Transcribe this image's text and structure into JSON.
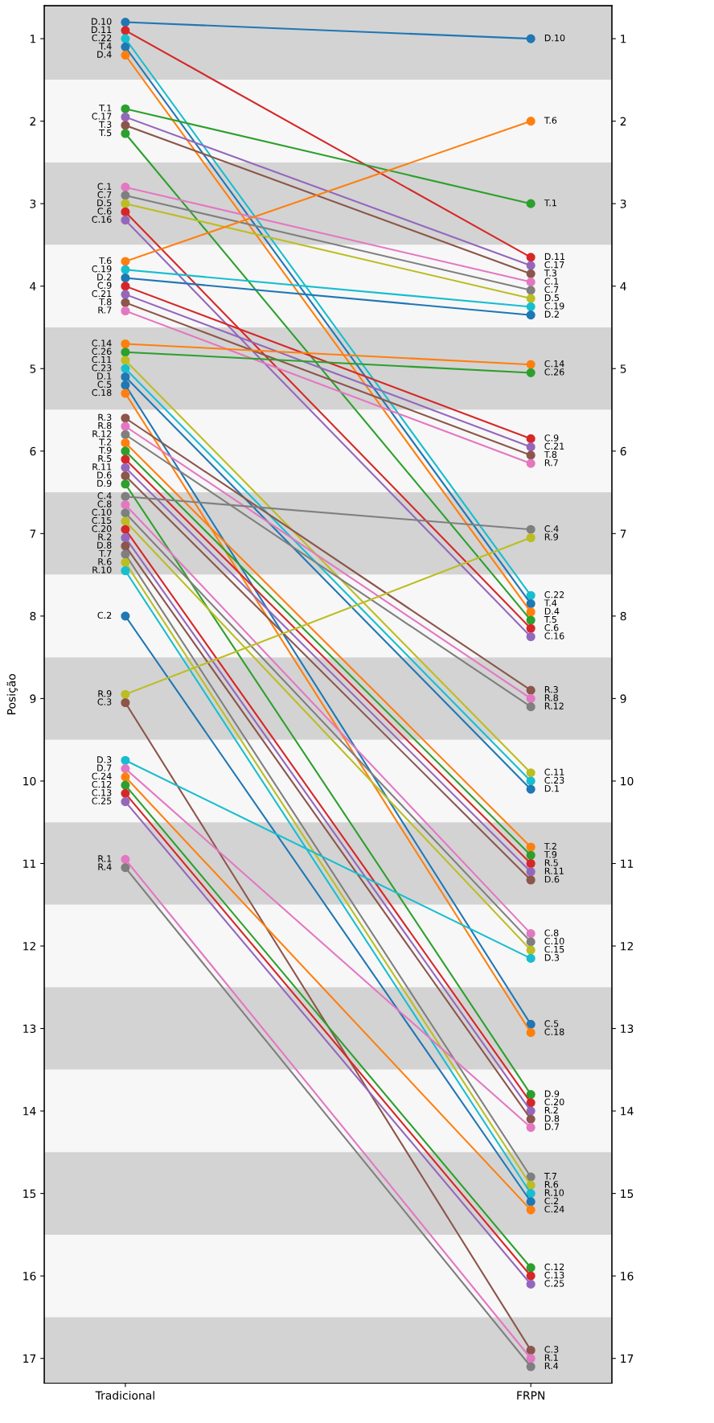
{
  "chart_data": {
    "type": "line",
    "ylabel": "Posição",
    "categories": [
      "Tradicional",
      "FRPN"
    ],
    "marker": "circle",
    "legend": false,
    "grid": false,
    "ylim": [
      17.3,
      0.6
    ],
    "yticks": [
      1,
      2,
      3,
      4,
      5,
      6,
      7,
      8,
      9,
      10,
      11,
      12,
      13,
      14,
      15,
      16,
      17
    ],
    "y2lim": [
      17.3,
      0.6
    ],
    "y2ticks": [
      1,
      2,
      3,
      4,
      5,
      6,
      7,
      8,
      9,
      10,
      11,
      12,
      13,
      14,
      15,
      16,
      17
    ],
    "bands": [
      {
        "axis": "y",
        "from": 0.5,
        "to": 1.5,
        "color": "#d3d3d3"
      },
      {
        "axis": "y",
        "from": 1.5,
        "to": 2.5,
        "color": "#f7f7f7"
      },
      {
        "axis": "y",
        "from": 2.5,
        "to": 3.5,
        "color": "#d3d3d3"
      },
      {
        "axis": "y",
        "from": 3.5,
        "to": 4.5,
        "color": "#f7f7f7"
      },
      {
        "axis": "y",
        "from": 4.5,
        "to": 5.5,
        "color": "#d3d3d3"
      },
      {
        "axis": "y",
        "from": 5.5,
        "to": 6.5,
        "color": "#f7f7f7"
      },
      {
        "axis": "y",
        "from": 6.5,
        "to": 7.5,
        "color": "#d3d3d3"
      },
      {
        "axis": "y",
        "from": 7.5,
        "to": 8.5,
        "color": "#f7f7f7"
      },
      {
        "axis": "y",
        "from": 8.5,
        "to": 9.5,
        "color": "#d3d3d3"
      },
      {
        "axis": "y",
        "from": 9.5,
        "to": 10.5,
        "color": "#f7f7f7"
      },
      {
        "axis": "y",
        "from": 10.5,
        "to": 11.5,
        "color": "#d3d3d3"
      },
      {
        "axis": "y",
        "from": 11.5,
        "to": 12.5,
        "color": "#f7f7f7"
      },
      {
        "axis": "y",
        "from": 12.5,
        "to": 13.5,
        "color": "#d3d3d3"
      },
      {
        "axis": "y",
        "from": 13.5,
        "to": 14.5,
        "color": "#f7f7f7"
      },
      {
        "axis": "y",
        "from": 14.5,
        "to": 15.5,
        "color": "#d3d3d3"
      },
      {
        "axis": "y",
        "from": 15.5,
        "to": 16.5,
        "color": "#f7f7f7"
      },
      {
        "axis": "y",
        "from": 16.5,
        "to": 17.5,
        "color": "#d3d3d3"
      }
    ],
    "series": [
      {
        "name": "D.10",
        "color": "#1f77b4",
        "values": [
          0.8,
          1.0
        ]
      },
      {
        "name": "D.11",
        "color": "#d62728",
        "values": [
          0.9,
          3.65
        ]
      },
      {
        "name": "C.22",
        "color": "#17becf",
        "values": [
          1.0,
          7.75
        ]
      },
      {
        "name": "T.4",
        "color": "#1f77b4",
        "values": [
          1.1,
          7.85
        ]
      },
      {
        "name": "D.4",
        "color": "#ff7f0e",
        "values": [
          1.2,
          7.95
        ]
      },
      {
        "name": "T.1",
        "color": "#2ca02c",
        "values": [
          1.85,
          3.0
        ]
      },
      {
        "name": "C.17",
        "color": "#9467bd",
        "values": [
          1.95,
          3.75
        ]
      },
      {
        "name": "T.3",
        "color": "#8c564b",
        "values": [
          2.05,
          3.85
        ]
      },
      {
        "name": "T.5",
        "color": "#2ca02c",
        "values": [
          2.15,
          8.05
        ]
      },
      {
        "name": "C.1",
        "color": "#e377c2",
        "values": [
          2.8,
          3.95
        ]
      },
      {
        "name": "C.7",
        "color": "#7f7f7f",
        "values": [
          2.9,
          4.05
        ]
      },
      {
        "name": "D.5",
        "color": "#bcbd22",
        "values": [
          3.0,
          4.15
        ]
      },
      {
        "name": "C.6",
        "color": "#d62728",
        "values": [
          3.1,
          8.15
        ]
      },
      {
        "name": "C.16",
        "color": "#9467bd",
        "values": [
          3.2,
          8.25
        ]
      },
      {
        "name": "T.6",
        "color": "#ff7f0e",
        "values": [
          3.7,
          2.0
        ]
      },
      {
        "name": "C.19",
        "color": "#17becf",
        "values": [
          3.8,
          4.25
        ]
      },
      {
        "name": "D.2",
        "color": "#1f77b4",
        "values": [
          3.9,
          4.35
        ]
      },
      {
        "name": "C.9",
        "color": "#d62728",
        "values": [
          4.0,
          5.85
        ]
      },
      {
        "name": "C.21",
        "color": "#9467bd",
        "values": [
          4.1,
          5.95
        ]
      },
      {
        "name": "T.8",
        "color": "#8c564b",
        "values": [
          4.2,
          6.05
        ]
      },
      {
        "name": "R.7",
        "color": "#e377c2",
        "values": [
          4.3,
          6.15
        ]
      },
      {
        "name": "C.14",
        "color": "#ff7f0e",
        "values": [
          4.7,
          4.95
        ]
      },
      {
        "name": "C.26",
        "color": "#2ca02c",
        "values": [
          4.8,
          5.05
        ]
      },
      {
        "name": "C.11",
        "color": "#bcbd22",
        "values": [
          4.9,
          9.9
        ]
      },
      {
        "name": "C.23",
        "color": "#17becf",
        "values": [
          5.0,
          10.0
        ]
      },
      {
        "name": "D.1",
        "color": "#1f77b4",
        "values": [
          5.1,
          10.1
        ]
      },
      {
        "name": "C.5",
        "color": "#1f77b4",
        "values": [
          5.2,
          12.95
        ]
      },
      {
        "name": "C.18",
        "color": "#ff7f0e",
        "values": [
          5.3,
          13.05
        ]
      },
      {
        "name": "R.3",
        "color": "#8c564b",
        "values": [
          5.6,
          8.9
        ]
      },
      {
        "name": "R.8",
        "color": "#e377c2",
        "values": [
          5.7,
          9.0
        ]
      },
      {
        "name": "R.12",
        "color": "#7f7f7f",
        "values": [
          5.8,
          9.1
        ]
      },
      {
        "name": "T.2",
        "color": "#ff7f0e",
        "values": [
          5.9,
          10.8
        ]
      },
      {
        "name": "T.9",
        "color": "#2ca02c",
        "values": [
          6.0,
          10.9
        ]
      },
      {
        "name": "R.5",
        "color": "#d62728",
        "values": [
          6.1,
          11.0
        ]
      },
      {
        "name": "R.11",
        "color": "#9467bd",
        "values": [
          6.2,
          11.1
        ]
      },
      {
        "name": "D.6",
        "color": "#8c564b",
        "values": [
          6.3,
          11.2
        ]
      },
      {
        "name": "D.9",
        "color": "#2ca02c",
        "values": [
          6.4,
          13.8
        ]
      },
      {
        "name": "C.4",
        "color": "#7f7f7f",
        "values": [
          6.55,
          6.95
        ]
      },
      {
        "name": "C.8",
        "color": "#e377c2",
        "values": [
          6.65,
          11.85
        ]
      },
      {
        "name": "C.10",
        "color": "#7f7f7f",
        "values": [
          6.75,
          11.95
        ]
      },
      {
        "name": "C.15",
        "color": "#bcbd22",
        "values": [
          6.85,
          12.05
        ]
      },
      {
        "name": "C.20",
        "color": "#d62728",
        "values": [
          6.95,
          13.9
        ]
      },
      {
        "name": "R.2",
        "color": "#9467bd",
        "values": [
          7.05,
          14.0
        ]
      },
      {
        "name": "D.8",
        "color": "#8c564b",
        "values": [
          7.15,
          14.1
        ]
      },
      {
        "name": "T.7",
        "color": "#7f7f7f",
        "values": [
          7.25,
          14.8
        ]
      },
      {
        "name": "R.6",
        "color": "#bcbd22",
        "values": [
          7.35,
          14.9
        ]
      },
      {
        "name": "R.10",
        "color": "#17becf",
        "values": [
          7.45,
          15.0
        ]
      },
      {
        "name": "C.2",
        "color": "#1f77b4",
        "values": [
          8.0,
          15.1
        ]
      },
      {
        "name": "R.9",
        "color": "#bcbd22",
        "values": [
          8.95,
          7.05
        ]
      },
      {
        "name": "C.3",
        "color": "#8c564b",
        "values": [
          9.05,
          16.9
        ]
      },
      {
        "name": "D.3",
        "color": "#17becf",
        "values": [
          9.75,
          12.15
        ]
      },
      {
        "name": "D.7",
        "color": "#e377c2",
        "values": [
          9.85,
          14.2
        ]
      },
      {
        "name": "C.24",
        "color": "#ff7f0e",
        "values": [
          9.95,
          15.2
        ]
      },
      {
        "name": "C.12",
        "color": "#2ca02c",
        "values": [
          10.05,
          15.9
        ]
      },
      {
        "name": "C.13",
        "color": "#d62728",
        "values": [
          10.15,
          16.0
        ]
      },
      {
        "name": "C.25",
        "color": "#9467bd",
        "values": [
          10.25,
          16.1
        ]
      },
      {
        "name": "R.1",
        "color": "#e377c2",
        "values": [
          10.95,
          17.0
        ]
      },
      {
        "name": "R.4",
        "color": "#7f7f7f",
        "values": [
          11.05,
          17.1
        ]
      }
    ]
  }
}
